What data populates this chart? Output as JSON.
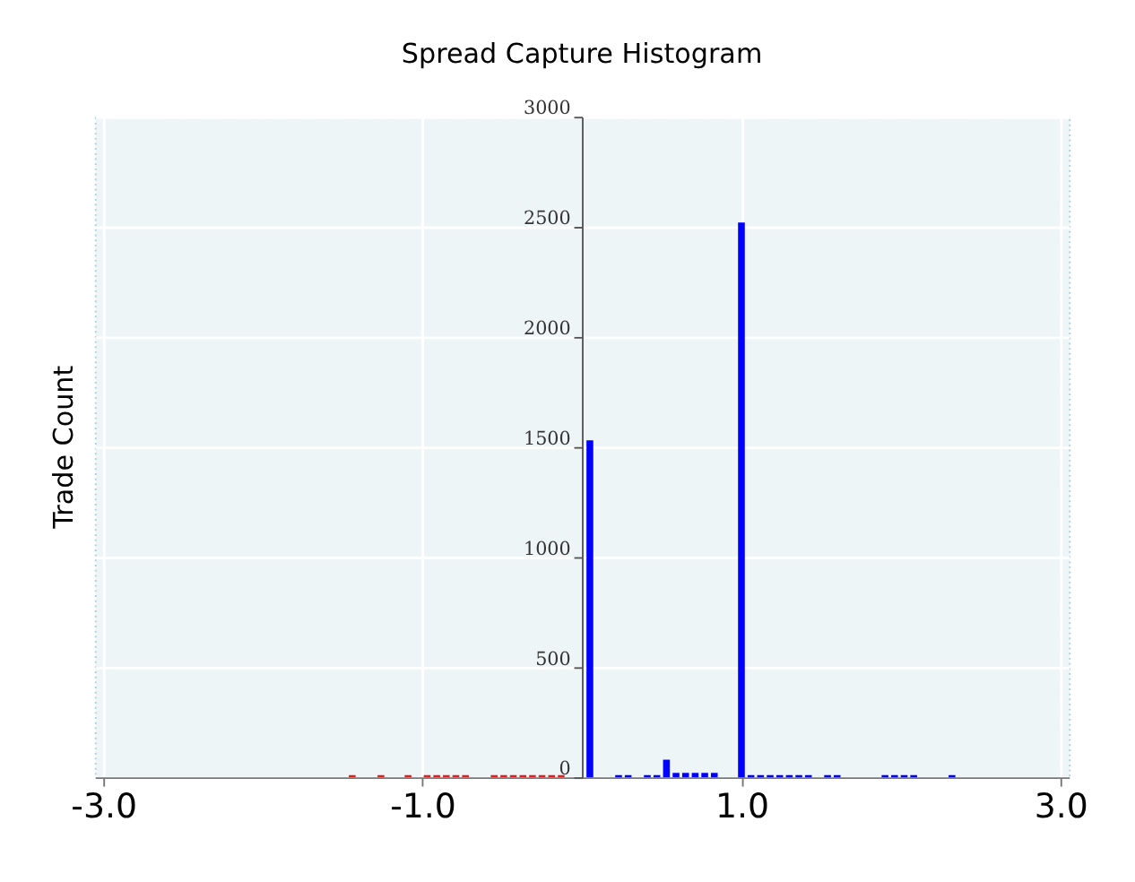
{
  "chart_data": {
    "type": "bar",
    "title": "Spread Capture Histogram",
    "ylabel": "Trade Count",
    "series": [
      {
        "color": "#e02020",
        "x": [
          -1.44,
          -1.26,
          -1.09,
          -0.97,
          -0.91,
          -0.85,
          -0.79,
          -0.73,
          -0.55,
          -0.49,
          -0.43,
          -0.37,
          -0.31,
          -0.25,
          -0.19,
          -0.13
        ],
        "values": [
          10,
          10,
          10,
          10,
          10,
          10,
          10,
          10,
          10,
          10,
          10,
          10,
          10,
          10,
          10,
          10
        ]
      },
      {
        "color": "#0000ff",
        "x": [
          0.05,
          0.23,
          0.29,
          0.41,
          0.47,
          0.53,
          0.59,
          0.65,
          0.71,
          0.77,
          0.83,
          1.0,
          1.06,
          1.12,
          1.18,
          1.24,
          1.3,
          1.36,
          1.42,
          1.54,
          1.6,
          1.9,
          1.96,
          2.02,
          2.08,
          2.32
        ],
        "values": [
          1530,
          10,
          10,
          10,
          10,
          80,
          20,
          20,
          20,
          20,
          20,
          2520,
          10,
          10,
          10,
          10,
          10,
          10,
          10,
          10,
          10,
          10,
          10,
          10,
          10,
          10
        ]
      }
    ],
    "xlim": [
      -3,
      3
    ],
    "xticks": [
      {
        "value": -3,
        "label": "-3.0"
      },
      {
        "value": -1,
        "label": "-1.0"
      },
      {
        "value": 1,
        "label": "1.0"
      },
      {
        "value": 3,
        "label": "3.0"
      }
    ],
    "ylim": [
      0,
      3000
    ],
    "yticks": [
      0,
      500,
      1000,
      1500,
      2000,
      2500,
      3000
    ],
    "grid": true,
    "legend": false
  }
}
